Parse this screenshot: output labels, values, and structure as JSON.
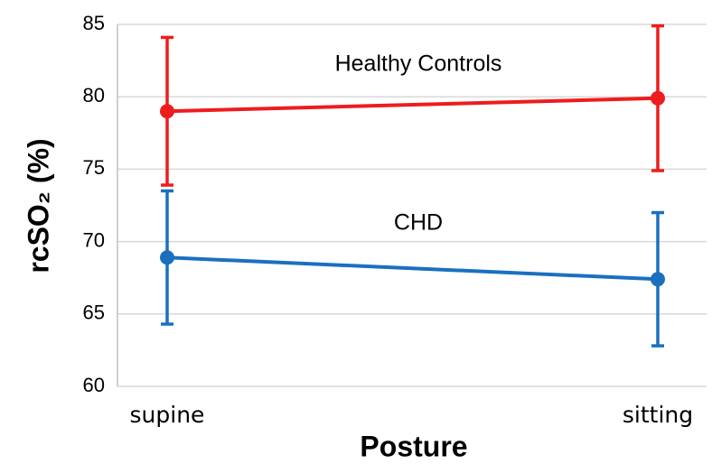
{
  "chart_data": {
    "type": "line",
    "x_label": "Posture",
    "y_label": "rcSO₂ (%)",
    "categories": [
      "supine",
      "sitting"
    ],
    "series": [
      {
        "name": "Healthy Controls",
        "color": "#ee1c1c",
        "values": [
          79.0,
          79.9
        ],
        "errors": [
          5.1,
          5.0
        ]
      },
      {
        "name": "CHD",
        "color": "#1a70bf",
        "values": [
          68.9,
          67.4
        ],
        "errors": [
          4.6,
          4.6
        ]
      }
    ],
    "ylim": [
      60,
      85
    ],
    "yticks": [
      60,
      65,
      70,
      75,
      80,
      85
    ],
    "grid": true
  }
}
